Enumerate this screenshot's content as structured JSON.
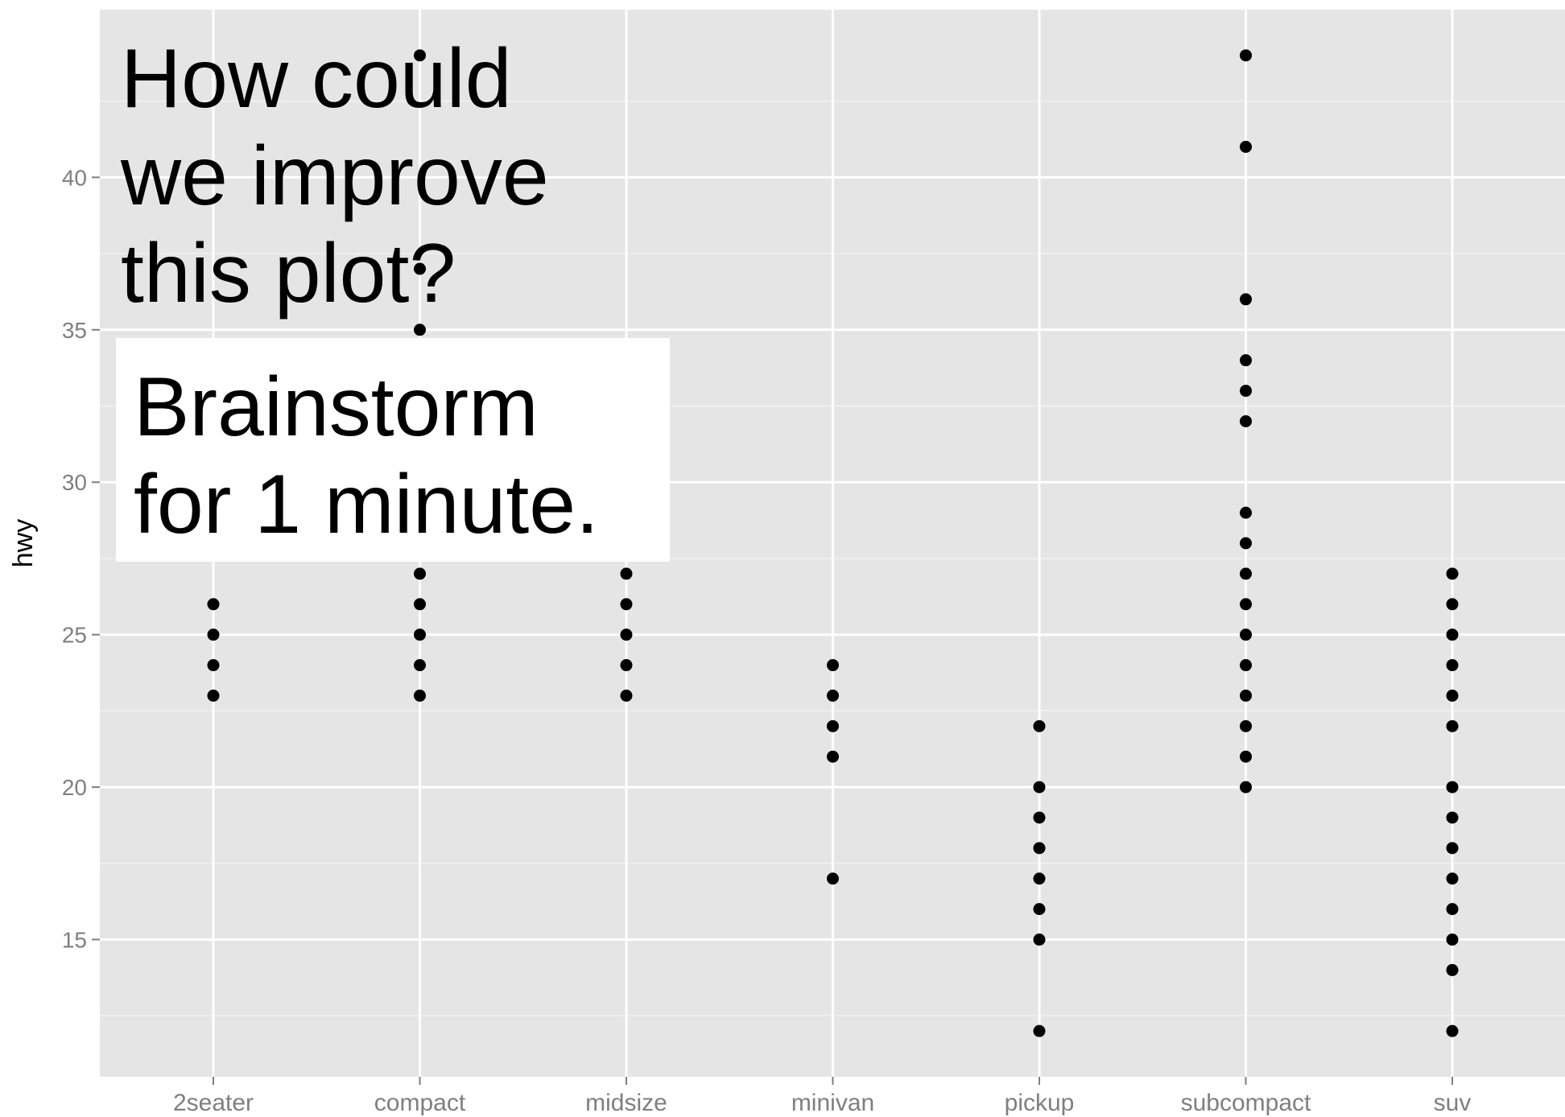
{
  "overlay": {
    "headline": "How could\nwe improve\nthis plot?",
    "prompt": "Brainstorm\nfor 1 minute."
  },
  "colors": {
    "panel_bg": "#E5E5E5",
    "grid_major": "#FFFFFF",
    "grid_minor": "#F2F2F2",
    "point": "#000000",
    "tick_text": "#7F7F7F"
  },
  "chart_data": {
    "type": "scatter",
    "title": "",
    "xlabel": "",
    "ylabel": "hwy",
    "categories": [
      "2seater",
      "compact",
      "midsize",
      "minivan",
      "pickup",
      "subcompact",
      "suv"
    ],
    "ylim": [
      10.5,
      45.5
    ],
    "yticks": [
      15,
      20,
      25,
      30,
      35,
      40
    ],
    "grid": true,
    "series": [
      {
        "points": [
          {
            "x": "2seater",
            "y": 23
          },
          {
            "x": "2seater",
            "y": 24
          },
          {
            "x": "2seater",
            "y": 25
          },
          {
            "x": "2seater",
            "y": 26
          },
          {
            "x": "compact",
            "y": 23
          },
          {
            "x": "compact",
            "y": 24
          },
          {
            "x": "compact",
            "y": 25
          },
          {
            "x": "compact",
            "y": 26
          },
          {
            "x": "compact",
            "y": 27
          },
          {
            "x": "compact",
            "y": 35
          },
          {
            "x": "compact",
            "y": 37
          },
          {
            "x": "compact",
            "y": 44
          },
          {
            "x": "midsize",
            "y": 23
          },
          {
            "x": "midsize",
            "y": 24
          },
          {
            "x": "midsize",
            "y": 25
          },
          {
            "x": "midsize",
            "y": 26
          },
          {
            "x": "midsize",
            "y": 27
          },
          {
            "x": "minivan",
            "y": 17
          },
          {
            "x": "minivan",
            "y": 21
          },
          {
            "x": "minivan",
            "y": 22
          },
          {
            "x": "minivan",
            "y": 23
          },
          {
            "x": "minivan",
            "y": 24
          },
          {
            "x": "pickup",
            "y": 12
          },
          {
            "x": "pickup",
            "y": 15
          },
          {
            "x": "pickup",
            "y": 16
          },
          {
            "x": "pickup",
            "y": 17
          },
          {
            "x": "pickup",
            "y": 18
          },
          {
            "x": "pickup",
            "y": 19
          },
          {
            "x": "pickup",
            "y": 20
          },
          {
            "x": "pickup",
            "y": 22
          },
          {
            "x": "subcompact",
            "y": 20
          },
          {
            "x": "subcompact",
            "y": 21
          },
          {
            "x": "subcompact",
            "y": 22
          },
          {
            "x": "subcompact",
            "y": 23
          },
          {
            "x": "subcompact",
            "y": 24
          },
          {
            "x": "subcompact",
            "y": 25
          },
          {
            "x": "subcompact",
            "y": 26
          },
          {
            "x": "subcompact",
            "y": 27
          },
          {
            "x": "subcompact",
            "y": 28
          },
          {
            "x": "subcompact",
            "y": 29
          },
          {
            "x": "subcompact",
            "y": 32
          },
          {
            "x": "subcompact",
            "y": 33
          },
          {
            "x": "subcompact",
            "y": 34
          },
          {
            "x": "subcompact",
            "y": 36
          },
          {
            "x": "subcompact",
            "y": 41
          },
          {
            "x": "subcompact",
            "y": 44
          },
          {
            "x": "suv",
            "y": 12
          },
          {
            "x": "suv",
            "y": 14
          },
          {
            "x": "suv",
            "y": 15
          },
          {
            "x": "suv",
            "y": 16
          },
          {
            "x": "suv",
            "y": 17
          },
          {
            "x": "suv",
            "y": 18
          },
          {
            "x": "suv",
            "y": 19
          },
          {
            "x": "suv",
            "y": 20
          },
          {
            "x": "suv",
            "y": 22
          },
          {
            "x": "suv",
            "y": 23
          },
          {
            "x": "suv",
            "y": 24
          },
          {
            "x": "suv",
            "y": 25
          },
          {
            "x": "suv",
            "y": 26
          },
          {
            "x": "suv",
            "y": 27
          }
        ]
      }
    ]
  }
}
